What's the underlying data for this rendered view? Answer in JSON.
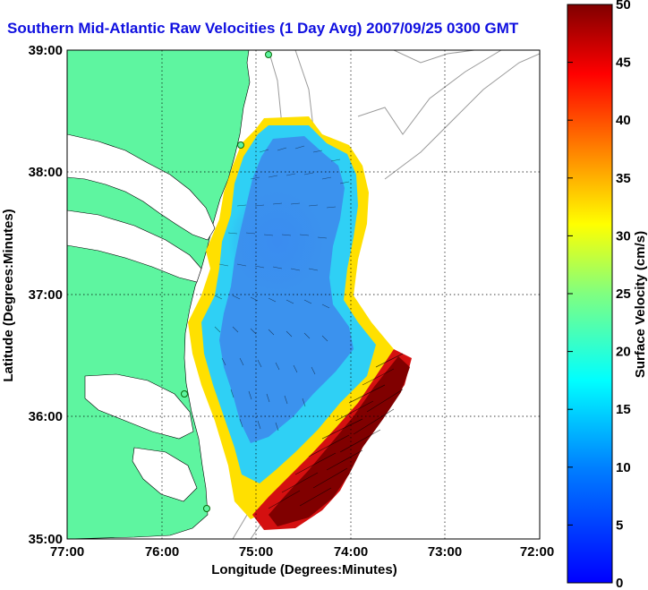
{
  "title": "Southern Mid-Atlantic Raw Velocities (1 Day Avg) 2007/09/25 0300 GMT",
  "map": {
    "xlabel": "Longitude (Degrees:Minutes)",
    "ylabel": "Latitude (Degrees:Minutes)",
    "x_ticks": [
      "77:00",
      "76:00",
      "75:00",
      "74:00",
      "73:00",
      "72:00"
    ],
    "y_ticks": [
      "39:00",
      "38:00",
      "37:00",
      "36:00",
      "35:00"
    ],
    "land_color": "#5ef5a0",
    "grid": "dotted"
  },
  "colorbar": {
    "label": "Surface Velocity (cm/s)",
    "ticks": [
      "50",
      "45",
      "40",
      "35",
      "30",
      "25",
      "20",
      "15",
      "10",
      "5",
      "0"
    ],
    "min": 0,
    "max": 50,
    "colormap": "jet"
  },
  "chart_data": {
    "type": "heatmap",
    "xlabel": "Longitude (Degrees:Minutes)",
    "ylabel": "Latitude (Degrees:Minutes)",
    "xlim": [
      -77,
      -72
    ],
    "ylim": [
      35,
      39
    ],
    "colorbar_range": [
      0,
      50
    ],
    "colorbar_label": "Surface Velocity (cm/s)"
  }
}
